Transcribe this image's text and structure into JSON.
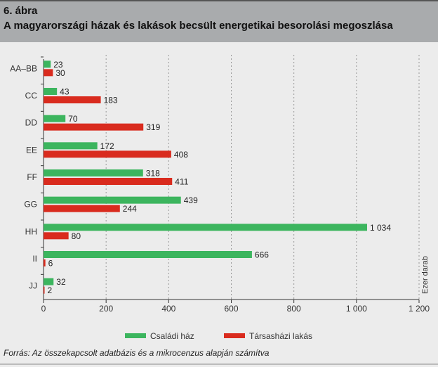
{
  "header": {
    "figure": "6. ábra",
    "title": "A magyarországi házak és lakások becsült energetikai besorolási megoszlása"
  },
  "chart_data": {
    "type": "bar",
    "orientation": "horizontal",
    "categories": [
      "AA–BB",
      "CC",
      "DD",
      "EE",
      "FF",
      "GG",
      "HH",
      "II",
      "JJ"
    ],
    "series": [
      {
        "name": "Családi ház",
        "color": "#3cb55e",
        "values": [
          23,
          43,
          70,
          172,
          318,
          439,
          1034,
          666,
          32
        ],
        "labels": [
          "23",
          "43",
          "70",
          "172",
          "318",
          "439",
          "1 034",
          "666",
          "32"
        ]
      },
      {
        "name": "Társasházi lakás",
        "color": "#d92b1e",
        "values": [
          30,
          183,
          319,
          408,
          411,
          244,
          80,
          6,
          2
        ],
        "labels": [
          "30",
          "183",
          "319",
          "408",
          "411",
          "244",
          "80",
          "6",
          "2"
        ]
      }
    ],
    "xlim": [
      0,
      1200
    ],
    "xticks": [
      0,
      200,
      400,
      600,
      800,
      1000,
      1200
    ],
    "xtick_labels": [
      "0",
      "200",
      "400",
      "600",
      "800",
      "1 000",
      "1 200"
    ],
    "xlabel": "Ezer darab",
    "grid": "vertical dashed",
    "legend": "bottom"
  },
  "footer": {
    "source": "Forrás: Az összekapcsolt adatbázis és a mikrocenzus alapján számítva"
  }
}
